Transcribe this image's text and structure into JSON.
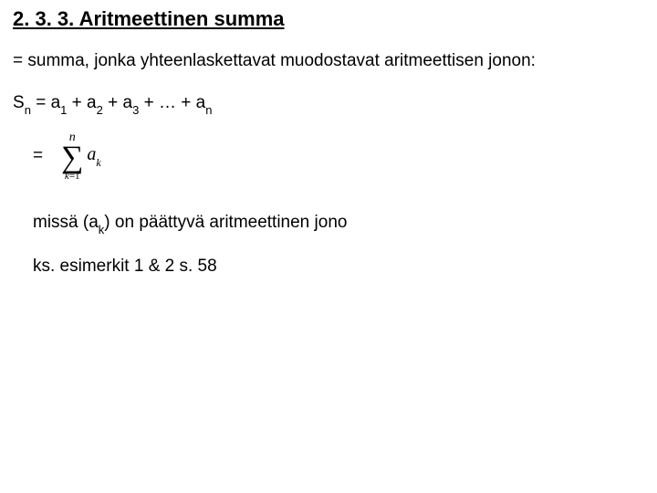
{
  "heading": "2. 3. 3. Aritmeettinen summa",
  "def_line": "= summa, jonka yhteenlaskettavat muodostavat aritmeettisen jonon:",
  "formula": {
    "lhs_base": "S",
    "lhs_sub": "n",
    "eq": " = ",
    "t_base": "a",
    "s1": "1",
    "s2": "2",
    "s3": "3",
    "sn": "n",
    "plus": " + ",
    "dots": " + … + "
  },
  "sigma": {
    "eq": "=",
    "upper": "n",
    "symbol": "∑",
    "lower_var": "k",
    "lower_rest": "=1",
    "term_base": "a",
    "term_sub": "k"
  },
  "cond": {
    "pre": "missä (a",
    "sub": "k",
    "post": ") on päättyvä aritmeettinen jono"
  },
  "ref": "ks. esimerkit 1 & 2 s. 58",
  "colors": {
    "text": "#000000",
    "background": "#ffffff"
  },
  "fonts": {
    "body": "Arial",
    "math": "Times New Roman"
  }
}
